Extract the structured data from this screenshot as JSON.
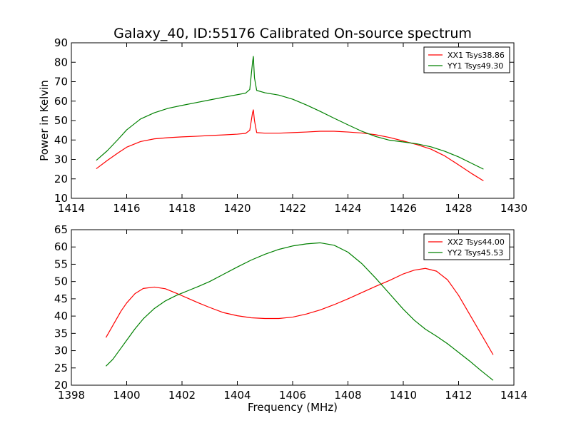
{
  "figure": {
    "title": "Galaxy_40, ID:55176 Calibrated On-source spectrum",
    "xlabel": "Frequency (MHz)"
  },
  "chart_data": [
    {
      "type": "line",
      "title": "Galaxy_40, ID:55176 Calibrated On-source spectrum",
      "xlabel": "",
      "ylabel": "Power in Kelvin",
      "xlim": [
        1414,
        1430
      ],
      "ylim": [
        10,
        90
      ],
      "xticks": [
        1414,
        1416,
        1418,
        1420,
        1422,
        1424,
        1426,
        1428,
        1430
      ],
      "yticks": [
        10,
        20,
        30,
        40,
        50,
        60,
        70,
        80,
        90
      ],
      "grid": false,
      "legend": "top-right",
      "series": [
        {
          "name": "XX1 Tsys38.86",
          "color": "#ff0000",
          "x": [
            1414.9,
            1415.3,
            1415.7,
            1416.0,
            1416.5,
            1417.0,
            1417.5,
            1418.0,
            1418.5,
            1419.0,
            1419.5,
            1420.0,
            1420.3,
            1420.45,
            1420.55,
            1420.58,
            1420.62,
            1420.7,
            1421.0,
            1421.5,
            1422.0,
            1422.5,
            1423.0,
            1423.5,
            1424.0,
            1424.5,
            1425.0,
            1425.5,
            1426.0,
            1426.5,
            1427.0,
            1427.5,
            1428.0,
            1428.5,
            1428.9
          ],
          "y": [
            25.2,
            29.5,
            33.5,
            36.3,
            39.2,
            40.6,
            41.2,
            41.6,
            41.9,
            42.3,
            42.6,
            43.0,
            43.4,
            45.0,
            54.0,
            55.5,
            50.0,
            43.8,
            43.5,
            43.5,
            43.8,
            44.1,
            44.5,
            44.5,
            44.1,
            43.6,
            42.7,
            41.3,
            39.5,
            37.6,
            35.3,
            31.8,
            27.2,
            22.5,
            19.0
          ]
        },
        {
          "name": "YY1 Tsys49.30",
          "color": "#008000",
          "x": [
            1414.9,
            1415.3,
            1415.7,
            1416.0,
            1416.5,
            1417.0,
            1417.5,
            1418.0,
            1418.5,
            1419.0,
            1419.5,
            1420.0,
            1420.3,
            1420.45,
            1420.55,
            1420.58,
            1420.62,
            1420.7,
            1421.0,
            1421.5,
            1422.0,
            1422.5,
            1423.0,
            1423.5,
            1424.0,
            1424.5,
            1425.0,
            1425.5,
            1426.0,
            1426.5,
            1427.0,
            1427.5,
            1428.0,
            1428.5,
            1428.9
          ],
          "y": [
            29.5,
            34.5,
            40.5,
            45.2,
            50.8,
            54.0,
            56.3,
            57.8,
            59.2,
            60.6,
            62.0,
            63.3,
            64.1,
            66.0,
            80.0,
            83.0,
            72.0,
            65.5,
            64.3,
            63.1,
            61.0,
            58.0,
            54.7,
            51.2,
            47.8,
            44.5,
            41.8,
            39.9,
            39.0,
            38.0,
            36.5,
            34.2,
            31.3,
            27.8,
            25.0
          ]
        }
      ]
    },
    {
      "type": "line",
      "title": "",
      "xlabel": "Frequency (MHz)",
      "ylabel": "",
      "xlim": [
        1398,
        1414
      ],
      "ylim": [
        20,
        65
      ],
      "xticks": [
        1398,
        1400,
        1402,
        1404,
        1406,
        1408,
        1410,
        1412,
        1414
      ],
      "yticks": [
        20,
        25,
        30,
        35,
        40,
        45,
        50,
        55,
        60,
        65
      ],
      "grid": false,
      "legend": "top-right",
      "series": [
        {
          "name": "XX2 Tsys44.00",
          "color": "#ff0000",
          "x": [
            1399.25,
            1399.5,
            1399.8,
            1400.0,
            1400.3,
            1400.6,
            1401.0,
            1401.4,
            1401.8,
            1402.2,
            1402.6,
            1403.0,
            1403.5,
            1404.0,
            1404.5,
            1405.0,
            1405.5,
            1406.0,
            1406.5,
            1407.0,
            1407.5,
            1408.0,
            1408.5,
            1409.0,
            1409.5,
            1410.0,
            1410.4,
            1410.8,
            1411.2,
            1411.6,
            1412.0,
            1412.4,
            1412.8,
            1413.25
          ],
          "y": [
            33.8,
            37.3,
            41.5,
            43.8,
            46.5,
            48.0,
            48.4,
            47.9,
            46.6,
            45.2,
            43.8,
            42.5,
            41.0,
            40.1,
            39.5,
            39.3,
            39.3,
            39.7,
            40.6,
            41.8,
            43.3,
            45.0,
            46.8,
            48.6,
            50.3,
            52.2,
            53.3,
            53.8,
            53.0,
            50.5,
            46.0,
            40.5,
            35.0,
            28.8
          ]
        },
        {
          "name": "YY2 Tsys45.53",
          "color": "#008000",
          "x": [
            1399.25,
            1399.5,
            1399.8,
            1400.0,
            1400.3,
            1400.6,
            1401.0,
            1401.4,
            1401.8,
            1402.2,
            1402.6,
            1403.0,
            1403.5,
            1404.0,
            1404.5,
            1405.0,
            1405.5,
            1406.0,
            1406.5,
            1407.0,
            1407.5,
            1408.0,
            1408.5,
            1409.0,
            1409.5,
            1410.0,
            1410.4,
            1410.8,
            1411.2,
            1411.6,
            1412.0,
            1412.4,
            1412.8,
            1413.25
          ],
          "y": [
            25.5,
            27.5,
            30.8,
            33.0,
            36.3,
            39.2,
            42.2,
            44.4,
            46.0,
            47.3,
            48.6,
            50.0,
            52.1,
            54.2,
            56.2,
            57.9,
            59.3,
            60.3,
            60.9,
            61.2,
            60.5,
            58.5,
            55.2,
            51.0,
            46.5,
            42.0,
            38.8,
            36.2,
            34.2,
            32.0,
            29.5,
            27.0,
            24.3,
            21.4
          ]
        }
      ]
    }
  ]
}
